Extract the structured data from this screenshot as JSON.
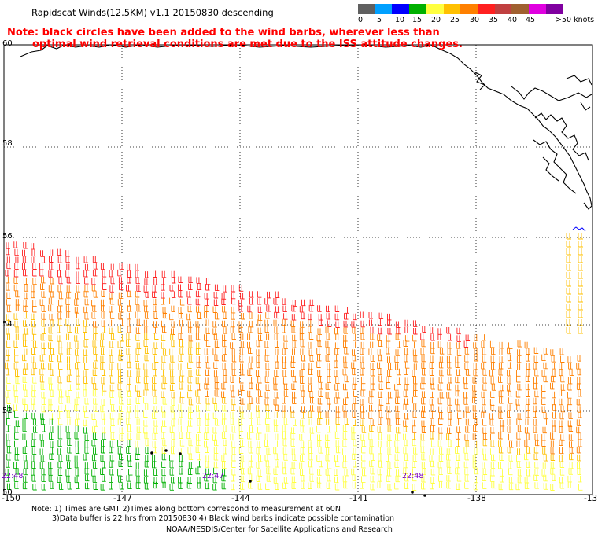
{
  "title": "Rapidscat Winds(12.5KM) v1.1 20150830 descending",
  "note_line1": "Note: black circles have been added to the wind barbs, wherever less than",
  "note_line2": "optimal wind retrieval conditions are met due to the ISS attitude changes.",
  "color_scale": {
    "colors": [
      "#606060",
      "#00a0ff",
      "#0000ff",
      "#00b000",
      "#ffff40",
      "#ffc000",
      "#ff8000",
      "#ff2020",
      "#c04040",
      "#a06030",
      "#e000e0",
      "#8000a0"
    ],
    "labels": [
      "0",
      "5",
      "10",
      "15",
      "20",
      "25",
      "30",
      "35",
      "40",
      "45",
      ">50 knots"
    ]
  },
  "latitude_labels": [
    "60",
    "58",
    "56",
    "54",
    "52",
    "50"
  ],
  "longitude_labels": [
    "-150",
    "-147",
    "-144",
    "-141",
    "-138",
    "-13"
  ],
  "time_labels": [
    "22:48",
    "22:47",
    "22:48"
  ],
  "footer_line1": "Note: 1) Times are GMT 2)Times along bottom correspond to measurement at 60N",
  "footer_line2": "3)Data buffer is 22 hrs from 20150830 4) Black wind barbs indicate possible contamination",
  "footer_line3": "NOAA/NESDIS/Center for Satellite Applications and Research"
}
